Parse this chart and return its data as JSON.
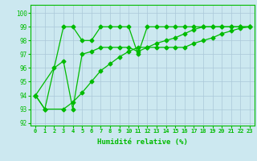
{
  "line1_x": [
    0,
    1,
    3,
    4,
    5,
    6,
    7,
    8,
    9,
    10,
    11,
    12,
    13,
    14,
    15,
    16,
    17,
    18,
    19,
    20,
    21,
    22,
    23
  ],
  "line1_y": [
    94,
    93,
    99,
    99,
    98,
    98,
    99,
    99,
    99,
    99,
    97,
    99,
    99,
    99,
    99,
    99,
    99,
    99,
    99,
    99,
    99,
    99,
    99
  ],
  "line2_x": [
    0,
    2,
    3,
    4,
    5,
    6,
    7,
    8,
    9,
    10,
    11,
    12,
    13,
    14,
    15,
    16,
    17,
    18,
    19,
    20,
    21,
    22,
    23
  ],
  "line2_y": [
    94,
    96,
    96.5,
    93,
    97,
    97.2,
    97.5,
    97.5,
    97.5,
    97.5,
    97.2,
    97.5,
    97.8,
    98.0,
    98.2,
    98.5,
    98.8,
    99,
    99,
    99,
    99,
    99,
    99
  ],
  "line3_x": [
    0,
    1,
    3,
    4,
    5,
    6,
    7,
    8,
    9,
    10,
    11,
    12,
    13,
    14,
    15,
    16,
    17,
    18,
    19,
    20,
    21,
    22,
    23
  ],
  "line3_y": [
    94,
    93,
    93,
    93.5,
    94.2,
    95.0,
    95.8,
    96.3,
    96.8,
    97.2,
    97.5,
    97.5,
    97.5,
    97.5,
    97.5,
    97.5,
    97.8,
    98.0,
    98.2,
    98.5,
    98.7,
    98.9,
    99
  ],
  "color": "#00bb00",
  "bg_color": "#cce8f0",
  "grid_color": "#aac8d8",
  "xlabel": "Humidité relative (%)",
  "xlim": [
    -0.5,
    23.5
  ],
  "ylim": [
    91.8,
    100.6
  ],
  "yticks": [
    92,
    93,
    94,
    95,
    96,
    97,
    98,
    99,
    100
  ],
  "xticks": [
    0,
    1,
    2,
    3,
    4,
    5,
    6,
    7,
    8,
    9,
    10,
    11,
    12,
    13,
    14,
    15,
    16,
    17,
    18,
    19,
    20,
    21,
    22,
    23
  ]
}
